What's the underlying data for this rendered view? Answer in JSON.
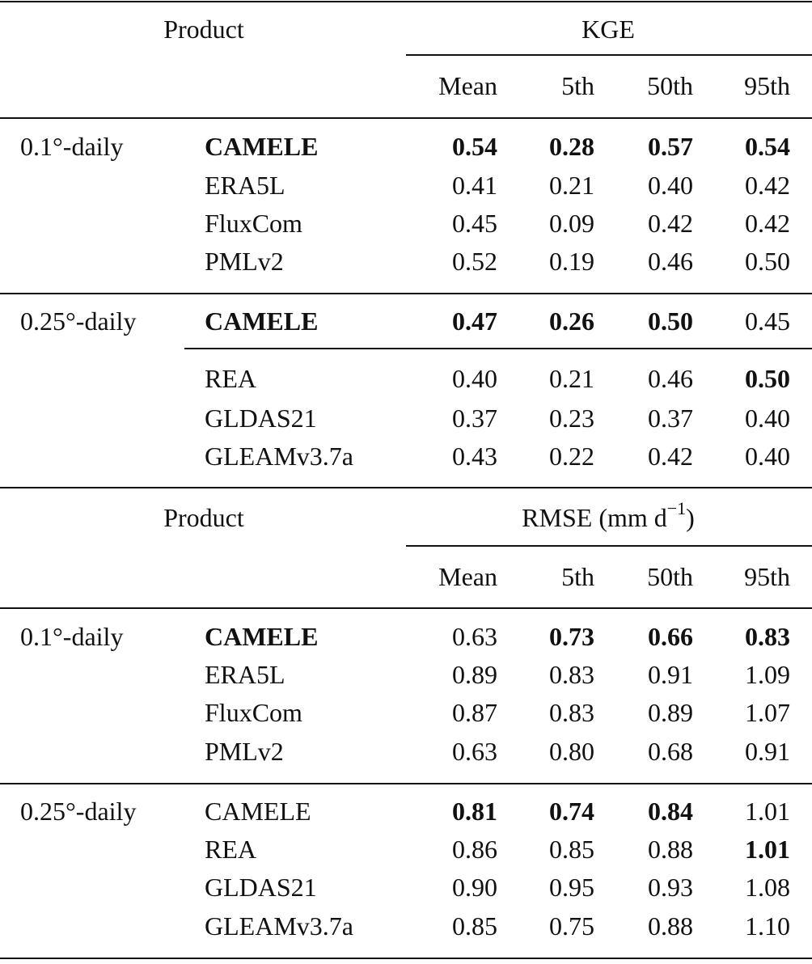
{
  "sections": [
    {
      "header": {
        "product": "Product",
        "metric": {
          "label": "KGE"
        },
        "columns": [
          "Mean",
          "5th",
          "50th",
          "95th"
        ]
      },
      "groups": [
        {
          "label": "0.1°-daily",
          "rows": [
            [
              "CAMELE",
              "0.54",
              "0.28",
              "0.57",
              "0.54"
            ],
            [
              "ERA5L",
              "0.41",
              "0.21",
              "0.40",
              "0.42"
            ],
            [
              "FluxCom",
              "0.45",
              "0.09",
              "0.42",
              "0.42"
            ],
            [
              "PMLv2",
              "0.52",
              "0.19",
              "0.46",
              "0.50"
            ]
          ]
        },
        {
          "label": "0.25°-daily",
          "rows": [
            [
              "CAMELE",
              "0.47",
              "0.26",
              "0.50",
              "0.45"
            ],
            [
              "REA",
              "0.40",
              "0.21",
              "0.46",
              "0.50"
            ],
            [
              "GLDAS21",
              "0.37",
              "0.23",
              "0.37",
              "0.40"
            ],
            [
              "GLEAMv3.7a",
              "0.43",
              "0.22",
              "0.42",
              "0.40"
            ]
          ]
        }
      ]
    },
    {
      "header": {
        "product": "Product",
        "metric": {
          "label": "RMSE (mm d",
          "superscript": "−1",
          "suffix": ")"
        },
        "columns": [
          "Mean",
          "5th",
          "50th",
          "95th"
        ]
      },
      "groups": [
        {
          "label": "0.1°-daily",
          "rows": [
            [
              "CAMELE",
              "0.63",
              "0.73",
              "0.66",
              "0.83"
            ],
            [
              "ERA5L",
              "0.89",
              "0.83",
              "0.91",
              "1.09"
            ],
            [
              "FluxCom",
              "0.87",
              "0.83",
              "0.89",
              "1.07"
            ],
            [
              "PMLv2",
              "0.63",
              "0.80",
              "0.68",
              "0.91"
            ]
          ]
        },
        {
          "label": "0.25°-daily",
          "rows": [
            [
              "CAMELE",
              "0.81",
              "0.74",
              "0.84",
              "1.01"
            ],
            [
              "REA",
              "0.86",
              "0.85",
              "0.88",
              "1.01"
            ],
            [
              "GLDAS21",
              "0.90",
              "0.95",
              "0.93",
              "1.08"
            ],
            [
              "GLEAMv3.7a",
              "0.85",
              "0.75",
              "0.88",
              "1.10"
            ]
          ]
        }
      ]
    }
  ]
}
